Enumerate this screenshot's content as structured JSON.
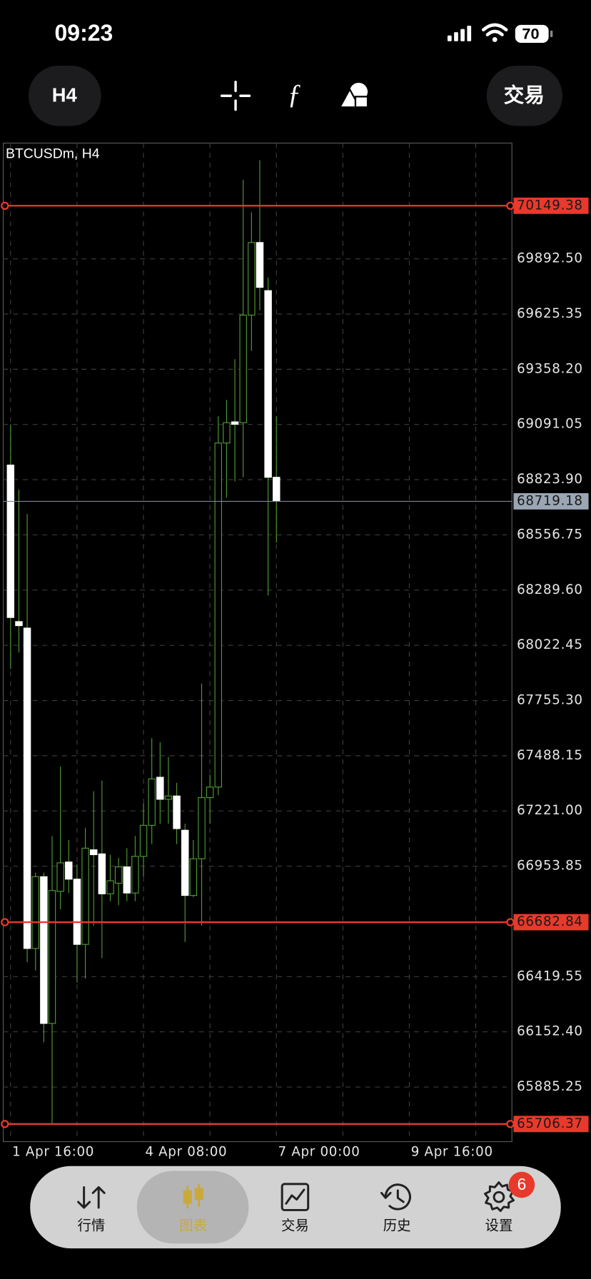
{
  "status_bar": {
    "time": "09:23",
    "battery": 70
  },
  "toolbar": {
    "timeframe": "H4",
    "trade_button": "交易"
  },
  "chart_data": {
    "type": "candlestick",
    "title": "BTCUSDm, H4",
    "open": [
      68894.7,
      68137.4,
      68105.8,
      66555.8,
      66902.9,
      66193.0,
      66831.9,
      66973.9,
      66891.1,
      66575.5,
      67033.0,
      67013.3,
      66820.1,
      66871.3,
      66950.2,
      66824.0,
      67001.5,
      67151.4,
      67384.1,
      67277.6,
      67293.4,
      67127.7,
      66812.2,
      66989.7,
      67285.5,
      67336.7,
      69001.2,
      69103.7,
      69099.8,
      69620.4,
      69971.4,
      69738.7,
      68835.5
    ],
    "high": [
      69091.9,
      68776.3,
      68658.0,
      66922.6,
      66922.6,
      67100.1,
      67435.3,
      67080.4,
      66962.1,
      67139.5,
      67317.0,
      67368.3,
      67009.4,
      66993.6,
      67040.9,
      67100.1,
      67257.9,
      67573.4,
      67553.7,
      67482.7,
      67356.5,
      67159.3,
      67080.4,
      67837.6,
      67395.9,
      69131.3,
      69210.2,
      69407.4,
      70275.1,
      70117.3,
      70369.8,
      69801.8,
      69131.3
    ],
    "low": [
      67908.6,
      67987.5,
      66488.8,
      66449.3,
      66102.2,
      65706.37,
      66745.1,
      66824.0,
      66390.2,
      66409.9,
      66666.2,
      66508.5,
      66784.6,
      66764.8,
      66784.6,
      66784.6,
      66902.9,
      67060.7,
      67159.3,
      67159.3,
      67060.7,
      66587.4,
      66804.3,
      66666.2,
      67159.3,
      67297.3,
      68736.9,
      68815.8,
      68835.5,
      69446.8,
      69644.0,
      68263.6,
      68520.0
    ],
    "close": [
      68157.1,
      68117.7,
      66555.8,
      66902.9,
      66193.0,
      66835.9,
      66969.9,
      66891.1,
      66575.5,
      67040.9,
      67009.4,
      66820.1,
      66883.2,
      66950.2,
      66824.0,
      67001.5,
      67151.4,
      67376.2,
      67277.6,
      67293.4,
      67135.6,
      66812.2,
      66989.7,
      67285.5,
      67336.7,
      69001.2,
      69099.8,
      69091.9,
      69620.4,
      69971.4,
      69754.5,
      68835.5,
      68719.18
    ],
    "bull_color": "#4f9a34",
    "bear_color": "#ffffff",
    "xlim": [
      -0.88,
      60.35
    ],
    "xticks": [
      {
        "value": 0,
        "label": "1 Apr 16:00"
      },
      {
        "value": 16,
        "label": "4 Apr 08:00"
      },
      {
        "value": 32,
        "label": "7 Apr 00:00"
      },
      {
        "value": 48,
        "label": "9 Apr 16:00"
      }
    ],
    "ylim": [
      65621.1,
      70452.6
    ],
    "yticks": [
      {
        "value": 69892.5,
        "label": "69892.50"
      },
      69625.35,
      {
        "value": 69358.2,
        "label": "69358.20"
      },
      69091.05,
      {
        "value": 68823.9,
        "label": "68823.90"
      },
      68556.75,
      {
        "value": 68289.6,
        "label": "68289.60"
      },
      68022.45,
      {
        "value": 67755.3,
        "label": "67755.30"
      },
      67488.15,
      {
        "value": 67221,
        "label": "67221.00"
      },
      66953.85,
      66419.55,
      {
        "value": 66152.4,
        "label": "66152.40"
      },
      65885.25
    ],
    "grid": true,
    "levels": [
      {
        "value": 70149.38,
        "color": "#e8392c"
      },
      {
        "value": 66682.84,
        "color": "#e8392c"
      },
      {
        "value": 65706.37,
        "color": "#e8392c"
      }
    ],
    "current_price": 68719.18
  },
  "tab_bar": {
    "tabs": [
      {
        "label": "行情"
      },
      {
        "label": "图表"
      },
      {
        "label": "交易"
      },
      {
        "label": "历史"
      },
      {
        "label": "设置"
      }
    ],
    "badge": 6
  }
}
